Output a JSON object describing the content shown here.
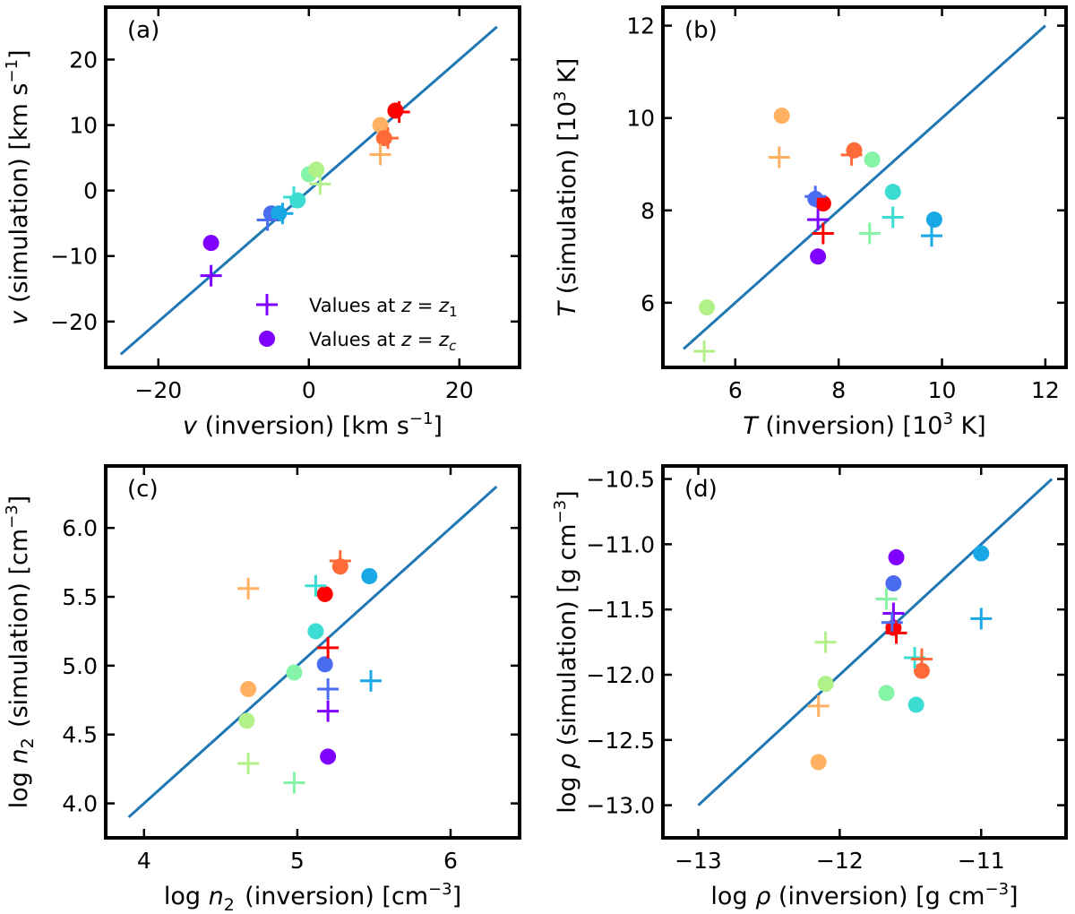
{
  "figure_title": "",
  "legend": {
    "cross_label": "Values at z = z1",
    "circle_label": "Values at z = zc"
  },
  "colors": {
    "reference_line": "#1f77b4",
    "legend_marker": "#8000ff",
    "points": [
      "#8000ff",
      "#4a6cf0",
      "#18a8e6",
      "#3bdcd2",
      "#86f4a6",
      "#b2f08a",
      "#ffb060",
      "#ff6a38",
      "#ff0000"
    ]
  },
  "chart_data": [
    {
      "type": "scatter",
      "panel": "(a)",
      "xlabel": "v (inversion) [km s^-1]",
      "ylabel": "v (simulation) [km s^-1]",
      "xlim": [
        -27,
        28
      ],
      "ylim": [
        -27,
        28
      ],
      "xticks": [
        -20,
        0,
        20
      ],
      "xticklabels": [
        "−20",
        "0",
        "20"
      ],
      "yticks": [
        -20,
        -10,
        0,
        10,
        20
      ],
      "yticklabels": [
        "−20",
        "−10",
        "0",
        "10",
        "20"
      ],
      "reference_line": [
        [
          -25,
          -25
        ],
        [
          25,
          25
        ]
      ],
      "series": [
        {
          "name": "Values at z = z1",
          "marker": "cross",
          "points": [
            {
              "x": -13,
              "y": -13,
              "c": 0
            },
            {
              "x": -5.5,
              "y": -4.5,
              "c": 1
            },
            {
              "x": -3.5,
              "y": -3.5,
              "c": 2
            },
            {
              "x": -2,
              "y": -1,
              "c": 3
            },
            {
              "x": 1.5,
              "y": 1,
              "c": 5
            },
            {
              "x": 9.5,
              "y": 5.5,
              "c": 6
            },
            {
              "x": 10.5,
              "y": 8,
              "c": 7
            },
            {
              "x": 12,
              "y": 12,
              "c": 8
            }
          ]
        },
        {
          "name": "Values at z = zc",
          "marker": "circle",
          "points": [
            {
              "x": -13,
              "y": -8,
              "c": 0
            },
            {
              "x": -5,
              "y": -3.5,
              "c": 1
            },
            {
              "x": -4,
              "y": -3.5,
              "c": 2
            },
            {
              "x": -1.5,
              "y": -1.5,
              "c": 3
            },
            {
              "x": 0,
              "y": 2.5,
              "c": 4
            },
            {
              "x": 1,
              "y": 3.2,
              "c": 5
            },
            {
              "x": 9.5,
              "y": 10,
              "c": 6
            },
            {
              "x": 10,
              "y": 8,
              "c": 7
            },
            {
              "x": 11.5,
              "y": 12.2,
              "c": 8
            }
          ]
        }
      ]
    },
    {
      "type": "scatter",
      "panel": "(b)",
      "xlabel": "T (inversion) [10^3 K]",
      "ylabel": "T (simulation) [10^3 K]",
      "xlim": [
        4.6,
        12.4
      ],
      "ylim": [
        4.6,
        12.4
      ],
      "xticks": [
        6,
        8,
        10,
        12
      ],
      "xticklabels": [
        "6",
        "8",
        "10",
        "12"
      ],
      "yticks": [
        6,
        8,
        10,
        12
      ],
      "yticklabels": [
        "6",
        "8",
        "10",
        "12"
      ],
      "reference_line": [
        [
          5,
          5
        ],
        [
          12,
          12
        ]
      ],
      "series": [
        {
          "name": "Values at z = z1",
          "marker": "cross",
          "points": [
            {
              "x": 7.6,
              "y": 7.8,
              "c": 0
            },
            {
              "x": 7.55,
              "y": 8.3,
              "c": 1
            },
            {
              "x": 9.8,
              "y": 7.45,
              "c": 2
            },
            {
              "x": 9.05,
              "y": 7.85,
              "c": 3
            },
            {
              "x": 8.6,
              "y": 7.5,
              "c": 4
            },
            {
              "x": 5.4,
              "y": 4.95,
              "c": 5
            },
            {
              "x": 6.85,
              "y": 9.15,
              "c": 6
            },
            {
              "x": 8.25,
              "y": 9.2,
              "c": 7
            },
            {
              "x": 7.7,
              "y": 7.5,
              "c": 8
            }
          ]
        },
        {
          "name": "Values at z = zc",
          "marker": "circle",
          "points": [
            {
              "x": 7.6,
              "y": 7.0,
              "c": 0
            },
            {
              "x": 7.55,
              "y": 8.25,
              "c": 1
            },
            {
              "x": 9.85,
              "y": 7.8,
              "c": 2
            },
            {
              "x": 9.05,
              "y": 8.4,
              "c": 3
            },
            {
              "x": 8.65,
              "y": 9.1,
              "c": 4
            },
            {
              "x": 5.45,
              "y": 5.9,
              "c": 5
            },
            {
              "x": 6.9,
              "y": 10.05,
              "c": 6
            },
            {
              "x": 8.3,
              "y": 9.3,
              "c": 7
            },
            {
              "x": 7.7,
              "y": 8.15,
              "c": 8
            }
          ]
        }
      ]
    },
    {
      "type": "scatter",
      "panel": "(c)",
      "xlabel": "log n2 (inversion) [cm^-3]",
      "ylabel": "log n2 (simulation) [cm^-3]",
      "xlim": [
        3.75,
        6.45
      ],
      "ylim": [
        3.75,
        6.45
      ],
      "xticks": [
        4,
        5,
        6
      ],
      "xticklabels": [
        "4",
        "5",
        "6"
      ],
      "yticks": [
        4.0,
        4.5,
        5.0,
        5.5,
        6.0
      ],
      "yticklabels": [
        "4.0",
        "4.5",
        "5.0",
        "5.5",
        "6.0"
      ],
      "reference_line": [
        [
          3.9,
          3.9
        ],
        [
          6.3,
          6.3
        ]
      ],
      "series": [
        {
          "name": "Values at z = z1",
          "marker": "cross",
          "points": [
            {
              "x": 5.2,
              "y": 4.67,
              "c": 0
            },
            {
              "x": 5.2,
              "y": 4.83,
              "c": 1
            },
            {
              "x": 5.48,
              "y": 4.89,
              "c": 2
            },
            {
              "x": 5.12,
              "y": 5.58,
              "c": 3
            },
            {
              "x": 4.98,
              "y": 4.15,
              "c": 4
            },
            {
              "x": 4.68,
              "y": 4.29,
              "c": 5
            },
            {
              "x": 4.68,
              "y": 5.56,
              "c": 6
            },
            {
              "x": 5.28,
              "y": 5.76,
              "c": 7
            },
            {
              "x": 5.2,
              "y": 5.13,
              "c": 8
            }
          ]
        },
        {
          "name": "Values at z = zc",
          "marker": "circle",
          "points": [
            {
              "x": 5.2,
              "y": 4.34,
              "c": 0
            },
            {
              "x": 5.18,
              "y": 5.01,
              "c": 1
            },
            {
              "x": 5.47,
              "y": 5.65,
              "c": 2
            },
            {
              "x": 5.12,
              "y": 5.25,
              "c": 3
            },
            {
              "x": 4.98,
              "y": 4.95,
              "c": 4
            },
            {
              "x": 4.67,
              "y": 4.6,
              "c": 5
            },
            {
              "x": 4.68,
              "y": 4.83,
              "c": 6
            },
            {
              "x": 5.28,
              "y": 5.72,
              "c": 7
            },
            {
              "x": 5.18,
              "y": 5.52,
              "c": 8
            }
          ]
        }
      ]
    },
    {
      "type": "scatter",
      "panel": "(d)",
      "xlabel": "log ρ (inversion) [g cm^-3]",
      "ylabel": "log ρ (simulation) [g cm^-3]",
      "xlim": [
        -13.25,
        -10.4
      ],
      "ylim": [
        -13.25,
        -10.4
      ],
      "xticks": [
        -13,
        -12,
        -11
      ],
      "xticklabels": [
        "−13",
        "−12",
        "−11"
      ],
      "yticks": [
        -13.0,
        -12.5,
        -12.0,
        -11.5,
        -11.0,
        -10.5
      ],
      "yticklabels": [
        "−13.0",
        "−12.5",
        "−12.0",
        "−11.5",
        "−11.0",
        "−10.5"
      ],
      "reference_line": [
        [
          -13,
          -13
        ],
        [
          -10.5,
          -10.5
        ]
      ],
      "series": [
        {
          "name": "Values at z = z1",
          "marker": "cross",
          "points": [
            {
              "x": -11.62,
              "y": -11.53,
              "c": 0
            },
            {
              "x": -11.63,
              "y": -11.6,
              "c": 1
            },
            {
              "x": -11.0,
              "y": -11.57,
              "c": 2
            },
            {
              "x": -11.47,
              "y": -11.87,
              "c": 3
            },
            {
              "x": -11.67,
              "y": -11.42,
              "c": 4
            },
            {
              "x": -12.1,
              "y": -11.75,
              "c": 5
            },
            {
              "x": -12.15,
              "y": -12.24,
              "c": 6
            },
            {
              "x": -11.42,
              "y": -11.88,
              "c": 7
            },
            {
              "x": -11.6,
              "y": -11.68,
              "c": 8
            }
          ]
        },
        {
          "name": "Values at z = zc",
          "marker": "circle",
          "points": [
            {
              "x": -11.6,
              "y": -11.1,
              "c": 0
            },
            {
              "x": -11.62,
              "y": -11.3,
              "c": 1
            },
            {
              "x": -11.0,
              "y": -11.07,
              "c": 2
            },
            {
              "x": -11.46,
              "y": -12.23,
              "c": 3
            },
            {
              "x": -11.67,
              "y": -12.14,
              "c": 4
            },
            {
              "x": -12.1,
              "y": -12.07,
              "c": 5
            },
            {
              "x": -12.15,
              "y": -12.67,
              "c": 6
            },
            {
              "x": -11.42,
              "y": -11.97,
              "c": 7
            },
            {
              "x": -11.62,
              "y": -11.64,
              "c": 8
            }
          ]
        }
      ]
    }
  ]
}
